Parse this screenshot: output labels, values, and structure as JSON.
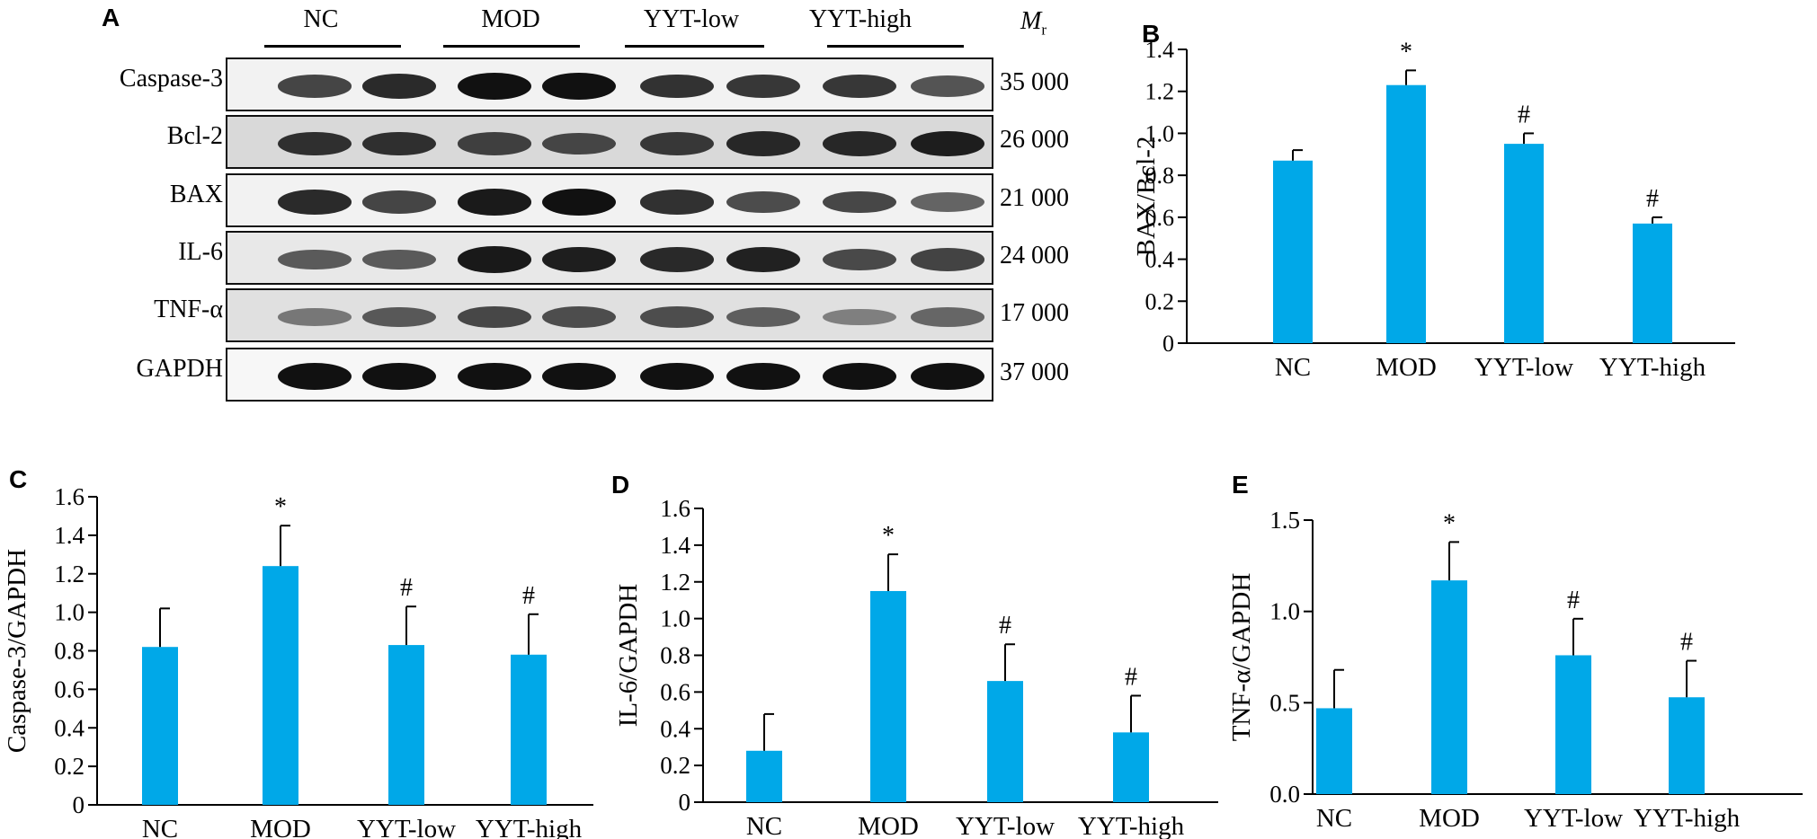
{
  "panel_a": {
    "letter": "A",
    "groups": [
      "NC",
      "MOD",
      "YYT-low",
      "YYT-high"
    ],
    "mr_label": "M",
    "mr_sub": "r",
    "rows": [
      {
        "protein": "Caspase-3",
        "mw": "35 000",
        "bg": "#f2f2f2",
        "intensity": [
          0.7,
          0.85,
          1.0,
          1.0,
          0.8,
          0.78,
          0.78,
          0.6
        ]
      },
      {
        "protein": "Bcl-2",
        "mw": "26 000",
        "bg": "#d9d9d9",
        "intensity": [
          0.8,
          0.8,
          0.7,
          0.65,
          0.75,
          0.85,
          0.85,
          0.92
        ]
      },
      {
        "protein": "BAX",
        "mw": "21 000",
        "bg": "#f2f2f2",
        "intensity": [
          0.85,
          0.7,
          0.95,
          1.0,
          0.82,
          0.65,
          0.68,
          0.5
        ]
      },
      {
        "protein": "IL-6",
        "mw": "24 000",
        "bg": "#e8e8e8",
        "intensity": [
          0.55,
          0.55,
          0.95,
          0.92,
          0.85,
          0.9,
          0.65,
          0.7
        ]
      },
      {
        "protein": "TNF-α",
        "mw": "17 000",
        "bg": "#e0e0e0",
        "intensity": [
          0.35,
          0.55,
          0.65,
          0.62,
          0.62,
          0.5,
          0.3,
          0.45
        ]
      },
      {
        "protein": "GAPDH",
        "mw": "37 000",
        "bg": "#f7f7f7",
        "intensity": [
          1.0,
          1.0,
          1.0,
          1.0,
          1.0,
          1.0,
          1.0,
          1.0
        ]
      }
    ]
  },
  "colors": {
    "bar": "#00a8e8",
    "axis": "#000000"
  },
  "chart_data": [
    {
      "id": "B",
      "letter": "B",
      "type": "bar",
      "categories": [
        "NC",
        "MOD",
        "YYT-low",
        "YYT-high"
      ],
      "values": [
        0.87,
        1.23,
        0.95,
        0.57
      ],
      "errors": [
        0.05,
        0.07,
        0.05,
        0.03
      ],
      "annotations": [
        "",
        "*",
        "#",
        "#"
      ],
      "ylabel": "BAX/Bcl-2",
      "ylim": [
        0,
        1.4
      ],
      "yticks": [
        "0",
        "0.2",
        "0.4",
        "0.6",
        "0.8",
        "1.0",
        "1.2",
        "1.4"
      ]
    },
    {
      "id": "C",
      "letter": "C",
      "type": "bar",
      "categories": [
        "NC",
        "MOD",
        "YYT-low",
        "YYT-high"
      ],
      "values": [
        0.82,
        1.24,
        0.83,
        0.78
      ],
      "errors": [
        0.2,
        0.21,
        0.2,
        0.21
      ],
      "annotations": [
        "",
        "*",
        "#",
        "#"
      ],
      "ylabel": "Caspase-3/GAPDH",
      "ylim": [
        0,
        1.6
      ],
      "yticks": [
        "0",
        "0.2",
        "0.4",
        "0.6",
        "0.8",
        "1.0",
        "1.2",
        "1.4",
        "1.6"
      ]
    },
    {
      "id": "D",
      "letter": "D",
      "type": "bar",
      "categories": [
        "NC",
        "MOD",
        "YYT-low",
        "YYT-high"
      ],
      "values": [
        0.28,
        1.15,
        0.66,
        0.38
      ],
      "errors": [
        0.2,
        0.2,
        0.2,
        0.2
      ],
      "annotations": [
        "",
        "*",
        "#",
        "#"
      ],
      "ylabel": "IL-6/GAPDH",
      "ylim": [
        0,
        1.6
      ],
      "yticks": [
        "0",
        "0.2",
        "0.4",
        "0.6",
        "0.8",
        "1.0",
        "1.2",
        "1.4",
        "1.6"
      ]
    },
    {
      "id": "E",
      "letter": "E",
      "type": "bar",
      "categories": [
        "NC",
        "MOD",
        "YYT-low",
        "YYT-high"
      ],
      "values": [
        0.47,
        1.17,
        0.76,
        0.53
      ],
      "errors": [
        0.21,
        0.21,
        0.2,
        0.2
      ],
      "annotations": [
        "",
        "*",
        "#",
        "#"
      ],
      "ylabel": "TNF-α/GAPDH",
      "ylim": [
        0,
        1.5
      ],
      "yticks": [
        "0.0",
        "0.5",
        "1.0",
        "1.5"
      ]
    }
  ]
}
